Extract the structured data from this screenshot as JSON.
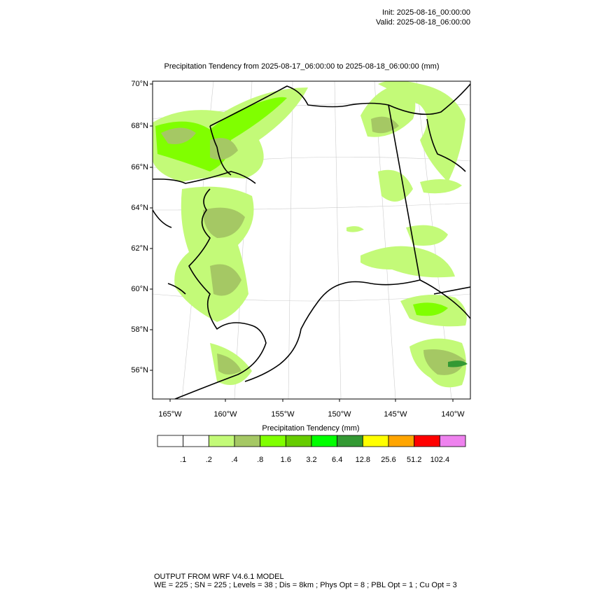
{
  "header": {
    "init": "Init: 2025-08-16_00:00:00",
    "valid": "Valid: 2025-08-18_06:00:00"
  },
  "title": "Precipitation Tendency from 2025-08-17_06:00:00 to 2025-08-18_06:00:00   (mm)",
  "map": {
    "lat_labels": [
      "70°N",
      "68°N",
      "66°N",
      "64°N",
      "62°N",
      "60°N",
      "58°N",
      "56°N"
    ],
    "lon_labels": [
      "165°W",
      "160°W",
      "155°W",
      "150°W",
      "145°W",
      "140°W"
    ]
  },
  "colorbar": {
    "title": "Precipitation Tendency  (mm)",
    "colors": [
      "#ffffff",
      "#ffffff",
      "#c3fa78",
      "#a5c864",
      "#80ff00",
      "#66cc00",
      "#00ff00",
      "#339933",
      "#ffff00",
      "#ffa500",
      "#ff0000",
      "#ee82ee"
    ],
    "labels": [
      ".1",
      ".2",
      ".4",
      ".8",
      "1.6",
      "3.2",
      "6.4",
      "12.8",
      "25.6",
      "51.2",
      "102.4"
    ]
  },
  "footer": {
    "line1": "OUTPUT FROM WRF V4.6.1 MODEL",
    "line2": "WE = 225 ; SN = 225 ; Levels = 38 ; Dis = 8km ; Phys Opt = 8 ; PBL Opt = 1 ; Cu Opt = 3"
  }
}
